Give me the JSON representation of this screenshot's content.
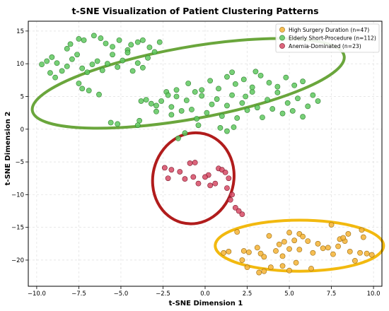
{
  "chart_data": {
    "type": "scatter",
    "title": "t-SNE Visualization of Patient Clustering Patterns",
    "xlabel": "t-SNE Dimension 1",
    "ylabel": "t-SNE Dimension 2",
    "xlim": [
      -10.5,
      10.5
    ],
    "ylim": [
      -24,
      16.5
    ],
    "xticks": [
      -10.0,
      -7.5,
      -5.0,
      -2.5,
      0.0,
      2.5,
      5.0,
      7.5,
      10.0
    ],
    "xtick_labels": [
      "−10.0",
      "−7.5",
      "−5.0",
      "−2.5",
      "0.0",
      "2.5",
      "5.0",
      "7.5",
      "10.0"
    ],
    "yticks": [
      -20,
      -15,
      -10,
      -5,
      0,
      5,
      10,
      15
    ],
    "ytick_labels": [
      "−20",
      "−15",
      "−10",
      "−5",
      "0",
      "5",
      "10",
      "15"
    ],
    "grid": true,
    "legend_position": "top-right",
    "series": [
      {
        "name": "High Surgery Duration (n=47)",
        "color": "#f5b335",
        "edge": "#9a6b10",
        "ellipse": {
          "cx": 5.6,
          "cy": -17.8,
          "rx": 5.0,
          "ry": 3.9,
          "color": "#f2b90f"
        },
        "points": [
          [
            1.9,
            -15.7
          ],
          [
            3.8,
            -16.3
          ],
          [
            5.0,
            -15.8
          ],
          [
            5.6,
            -16.0
          ],
          [
            7.5,
            -14.6
          ],
          [
            8.0,
            -16.8
          ],
          [
            8.3,
            -17.1
          ],
          [
            8.5,
            -16.0
          ],
          [
            9.3,
            -15.4
          ],
          [
            9.4,
            -16.5
          ],
          [
            1.1,
            -18.9
          ],
          [
            1.4,
            -18.7
          ],
          [
            2.3,
            -18.6
          ],
          [
            2.6,
            -18.8
          ],
          [
            3.1,
            -18.1
          ],
          [
            3.3,
            -19.0
          ],
          [
            3.5,
            -19.5
          ],
          [
            4.2,
            -18.6
          ],
          [
            4.4,
            -17.6
          ],
          [
            4.6,
            -19.4
          ],
          [
            4.7,
            -17.2
          ],
          [
            5.0,
            -18.3
          ],
          [
            5.3,
            -17.0
          ],
          [
            5.6,
            -18.4
          ],
          [
            5.8,
            -16.4
          ],
          [
            6.1,
            -17.1
          ],
          [
            6.4,
            -18.9
          ],
          [
            6.7,
            -17.5
          ],
          [
            7.0,
            -18.2
          ],
          [
            7.3,
            -18.1
          ],
          [
            7.6,
            -19.1
          ],
          [
            7.9,
            -17.9
          ],
          [
            8.2,
            -16.6
          ],
          [
            8.6,
            -18.7
          ],
          [
            8.9,
            -20.1
          ],
          [
            9.2,
            -18.9
          ],
          [
            9.6,
            -19.0
          ],
          [
            9.9,
            -19.2
          ],
          [
            2.2,
            -20.0
          ],
          [
            2.5,
            -21.1
          ],
          [
            3.2,
            -21.9
          ],
          [
            3.5,
            -21.7
          ],
          [
            3.9,
            -21.1
          ],
          [
            4.6,
            -20.9
          ],
          [
            5.0,
            -21.6
          ],
          [
            5.4,
            -20.4
          ],
          [
            6.3,
            -21.3
          ]
        ]
      },
      {
        "name": "Elderly Short-Procedure (n=112)",
        "color": "#5fc85f",
        "edge": "#2e7d2e",
        "ellipse": {
          "cx": -1.0,
          "cy": 7.0,
          "rx": 9.4,
          "ry": 5.5,
          "rotate": 10,
          "color": "#6aa63c"
        },
        "points": [
          [
            -8.2,
            12.3
          ],
          [
            -8.0,
            13.0
          ],
          [
            -7.5,
            13.8
          ],
          [
            -7.2,
            13.6
          ],
          [
            -6.6,
            14.3
          ],
          [
            -6.2,
            13.9
          ],
          [
            -5.9,
            13.1
          ],
          [
            -5.5,
            12.6
          ],
          [
            -5.1,
            13.6
          ],
          [
            -4.6,
            12.1
          ],
          [
            -4.4,
            12.9
          ],
          [
            -4.0,
            13.3
          ],
          [
            -3.7,
            13.6
          ],
          [
            -3.3,
            12.5
          ],
          [
            -3.0,
            11.8
          ],
          [
            -2.7,
            13.3
          ],
          [
            -9.7,
            9.9
          ],
          [
            -9.4,
            10.4
          ],
          [
            -9.1,
            11.0
          ],
          [
            -8.8,
            10.1
          ],
          [
            -8.5,
            8.9
          ],
          [
            -8.2,
            9.6
          ],
          [
            -7.9,
            10.7
          ],
          [
            -7.6,
            11.4
          ],
          [
            -7.3,
            9.3
          ],
          [
            -7.0,
            8.7
          ],
          [
            -6.7,
            9.9
          ],
          [
            -6.4,
            10.4
          ],
          [
            -6.1,
            9.0
          ],
          [
            -5.8,
            10.0
          ],
          [
            -5.5,
            11.4
          ],
          [
            -5.2,
            9.5
          ],
          [
            -4.9,
            10.5
          ],
          [
            -4.6,
            11.7
          ],
          [
            -4.3,
            8.9
          ],
          [
            -4.0,
            10.1
          ],
          [
            -3.7,
            9.4
          ],
          [
            -3.4,
            10.9
          ],
          [
            -9.2,
            8.6
          ],
          [
            -8.9,
            7.9
          ],
          [
            -7.3,
            6.2
          ],
          [
            -7.5,
            7.0
          ],
          [
            -6.9,
            5.9
          ],
          [
            -6.3,
            5.3
          ],
          [
            -3.9,
            1.3
          ],
          [
            -3.5,
            4.5
          ],
          [
            -3.2,
            3.9
          ],
          [
            -2.9,
            2.7
          ],
          [
            -2.6,
            4.3
          ],
          [
            -2.3,
            5.7
          ],
          [
            -2.0,
            3.4
          ],
          [
            -1.7,
            5.0
          ],
          [
            -1.4,
            2.8
          ],
          [
            -1.1,
            4.4
          ],
          [
            -0.8,
            3.0
          ],
          [
            -0.5,
            1.6
          ],
          [
            -0.2,
            5.1
          ],
          [
            0.1,
            2.5
          ],
          [
            0.4,
            3.8
          ],
          [
            0.7,
            4.6
          ],
          [
            1.0,
            2.0
          ],
          [
            1.3,
            3.6
          ],
          [
            1.6,
            5.2
          ],
          [
            1.9,
            1.7
          ],
          [
            2.2,
            4.0
          ],
          [
            2.5,
            2.9
          ],
          [
            2.8,
            5.7
          ],
          [
            3.1,
            3.3
          ],
          [
            3.4,
            1.8
          ],
          [
            3.7,
            4.5
          ],
          [
            4.0,
            3.1
          ],
          [
            4.3,
            5.6
          ],
          [
            4.6,
            2.4
          ],
          [
            4.9,
            4.0
          ],
          [
            5.2,
            2.8
          ],
          [
            5.5,
            4.7
          ],
          [
            5.8,
            1.9
          ],
          [
            6.1,
            3.5
          ],
          [
            6.4,
            5.2
          ],
          [
            6.7,
            4.3
          ],
          [
            -0.2,
            6.0
          ],
          [
            0.3,
            7.4
          ],
          [
            0.8,
            6.2
          ],
          [
            1.3,
            8.0
          ],
          [
            1.8,
            6.9
          ],
          [
            2.3,
            7.6
          ],
          [
            2.8,
            6.4
          ],
          [
            3.3,
            8.2
          ],
          [
            3.8,
            7.1
          ],
          [
            4.3,
            6.5
          ],
          [
            4.8,
            7.9
          ],
          [
            5.3,
            6.7
          ],
          [
            5.8,
            7.3
          ],
          [
            -1.7,
            6.0
          ],
          [
            -2.2,
            5.2
          ],
          [
            -1.0,
            7.0
          ],
          [
            -0.6,
            5.7
          ],
          [
            1.6,
            8.7
          ],
          [
            2.4,
            5.0
          ],
          [
            3.0,
            8.8
          ],
          [
            -3.8,
            4.3
          ],
          [
            -4.0,
            0.6
          ],
          [
            -5.6,
            1.0
          ],
          [
            -5.2,
            0.8
          ],
          [
            -0.4,
            0.6
          ],
          [
            0.9,
            0.2
          ],
          [
            1.3,
            -0.3
          ],
          [
            1.7,
            0.3
          ],
          [
            -1.2,
            -0.6
          ],
          [
            -1.6,
            -1.4
          ],
          [
            -2.0,
            2.2
          ],
          [
            -2.9,
            3.6
          ]
        ]
      },
      {
        "name": "Anemia-Dominated (n=23)",
        "color": "#d64a65",
        "edge": "#7a1a2c",
        "ellipse": {
          "cx": -0.7,
          "cy": -7.5,
          "rx": 2.4,
          "ry": 7.0,
          "rotate": -14,
          "color": "#b11c1c"
        },
        "points": [
          [
            -2.4,
            -5.9
          ],
          [
            -2.0,
            -6.2
          ],
          [
            -1.5,
            -6.5
          ],
          [
            -0.9,
            -5.2
          ],
          [
            -0.6,
            -5.1
          ],
          [
            0.2,
            -7.0
          ],
          [
            0.8,
            -6.0
          ],
          [
            1.0,
            -6.2
          ],
          [
            1.2,
            -6.6
          ],
          [
            1.4,
            -7.5
          ],
          [
            -2.2,
            -7.5
          ],
          [
            -1.2,
            -7.6
          ],
          [
            -0.7,
            -7.3
          ],
          [
            -0.4,
            -8.3
          ],
          [
            0.0,
            -7.3
          ],
          [
            0.3,
            -8.6
          ],
          [
            0.6,
            -8.3
          ],
          [
            1.3,
            -9.0
          ],
          [
            1.6,
            -10.0
          ],
          [
            1.5,
            -10.8
          ],
          [
            1.8,
            -12.0
          ],
          [
            2.0,
            -12.5
          ],
          [
            2.2,
            -13.0
          ]
        ]
      }
    ]
  }
}
